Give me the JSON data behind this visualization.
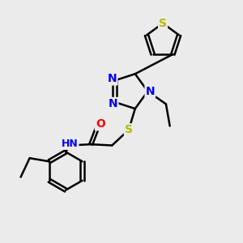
{
  "background_color": "#ebebeb",
  "bond_color": "#000000",
  "bond_width": 1.8,
  "figsize": [
    3.0,
    3.0
  ],
  "dpi": 100,
  "atom_colors": {
    "S": "#b8b800",
    "N": "#0000ee",
    "O": "#ff0000",
    "C": "#000000",
    "H": "#000000"
  },
  "font_size": 10,
  "font_size_nh": 9
}
